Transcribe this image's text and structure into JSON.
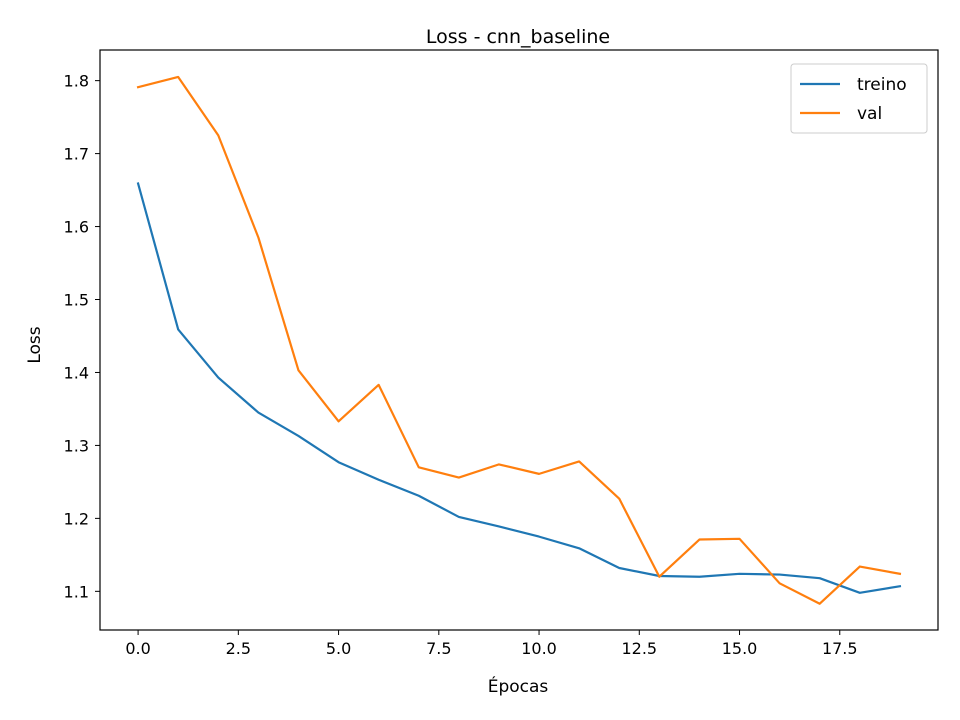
{
  "chart_data": {
    "type": "line",
    "title": "Loss - cnn_baseline",
    "xlabel": "Épocas",
    "ylabel": "Loss",
    "xlim": [
      -0.95,
      19.95
    ],
    "ylim": [
      1.047,
      1.842
    ],
    "x_ticks": [
      0.0,
      2.5,
      5.0,
      7.5,
      10.0,
      12.5,
      15.0,
      17.5
    ],
    "x_tick_labels": [
      "0.0",
      "2.5",
      "5.0",
      "7.5",
      "10.0",
      "12.5",
      "15.0",
      "17.5"
    ],
    "y_ticks": [
      1.1,
      1.2,
      1.3,
      1.4,
      1.5,
      1.6,
      1.7,
      1.8
    ],
    "y_tick_labels": [
      "1.1",
      "1.2",
      "1.3",
      "1.4",
      "1.5",
      "1.6",
      "1.7",
      "1.8"
    ],
    "grid": false,
    "legend_position": "top-right",
    "x": [
      0,
      1,
      2,
      3,
      4,
      5,
      6,
      7,
      8,
      9,
      10,
      11,
      12,
      13,
      14,
      15,
      16,
      17,
      18,
      19
    ],
    "series": [
      {
        "name": "treino",
        "color": "#1f77b4",
        "values": [
          1.659,
          1.459,
          1.393,
          1.345,
          1.313,
          1.277,
          1.253,
          1.231,
          1.202,
          1.189,
          1.175,
          1.159,
          1.132,
          1.121,
          1.12,
          1.124,
          1.123,
          1.118,
          1.098,
          1.107
        ]
      },
      {
        "name": "val",
        "color": "#ff7f0e",
        "values": [
          1.791,
          1.805,
          1.725,
          1.585,
          1.403,
          1.333,
          1.383,
          1.27,
          1.256,
          1.274,
          1.261,
          1.278,
          1.227,
          1.12,
          1.171,
          1.172,
          1.111,
          1.083,
          1.134,
          1.124
        ]
      }
    ]
  }
}
